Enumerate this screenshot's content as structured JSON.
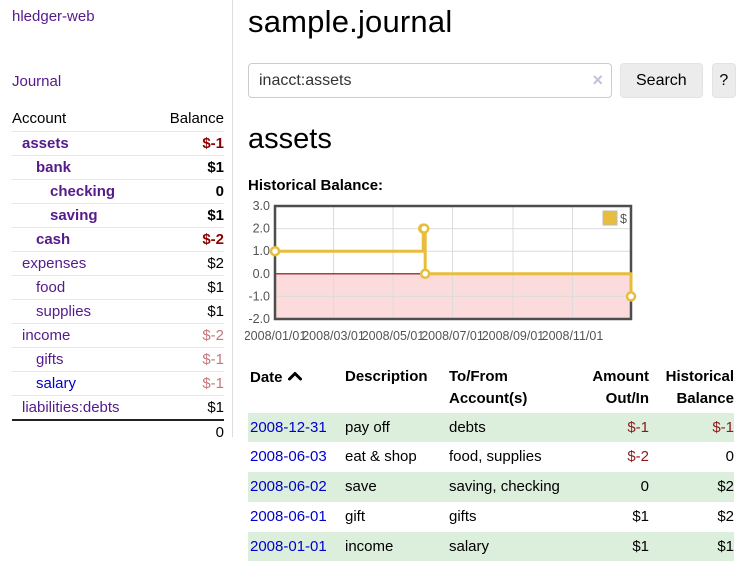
{
  "sidebar": {
    "app_title": "hledger-web",
    "nav": {
      "journal_label": "Journal"
    },
    "accounts_table": {
      "headers": {
        "account": "Account",
        "balance": "Balance"
      },
      "rows": [
        {
          "name": "assets",
          "balance": "$-1",
          "indent": 1,
          "bold": true,
          "balance_style": "neg-strong"
        },
        {
          "name": "bank",
          "balance": "$1",
          "indent": 2,
          "bold": true,
          "balance_style": "pos"
        },
        {
          "name": "checking",
          "balance": "0",
          "indent": 3,
          "bold": true,
          "balance_style": "pos"
        },
        {
          "name": "saving",
          "balance": "$1",
          "indent": 3,
          "bold": true,
          "balance_style": "pos"
        },
        {
          "name": "cash",
          "balance": "$-2",
          "indent": 2,
          "bold": true,
          "balance_style": "neg-strong"
        },
        {
          "name": "expenses",
          "balance": "$2",
          "indent": 1,
          "bold": false,
          "balance_style": "pos"
        },
        {
          "name": "food",
          "balance": "$1",
          "indent": 2,
          "bold": false,
          "balance_style": "pos"
        },
        {
          "name": "supplies",
          "balance": "$1",
          "indent": 2,
          "bold": false,
          "balance_style": "pos"
        },
        {
          "name": "income",
          "balance": "$-2",
          "indent": 1,
          "bold": false,
          "balance_style": "neg-soft"
        },
        {
          "name": "gifts",
          "balance": "$-1",
          "indent": 2,
          "bold": false,
          "balance_style": "neg-soft"
        },
        {
          "name": "salary",
          "balance": "$-1",
          "indent": 2,
          "bold": false,
          "balance_style": "neg-soft",
          "link_color": "blue"
        },
        {
          "name": "liabilities:debts",
          "balance": "$1",
          "indent": 1,
          "bold": false,
          "balance_style": "pos"
        }
      ],
      "total": "0"
    }
  },
  "main": {
    "title": "sample.journal",
    "search": {
      "value": "inacct:assets",
      "clear_icon": "×",
      "search_button": "Search",
      "help_button": "?"
    },
    "account_heading": "assets",
    "chart_label": "Historical Balance:"
  },
  "chart_data": {
    "type": "line",
    "title": "Historical Balance",
    "step": true,
    "xlim": [
      "2008-01-01",
      "2008-12-31"
    ],
    "ylim": [
      -2.0,
      3.0
    ],
    "yticks": [
      3.0,
      2.0,
      1.0,
      0.0,
      -1.0,
      -2.0
    ],
    "xticks": [
      {
        "pos": "2008-01-01",
        "label": "2008/01/01"
      },
      {
        "pos": "2008-03-01",
        "label": "2008/03/01"
      },
      {
        "pos": "2008-05-01",
        "label": "2008/05/01"
      },
      {
        "pos": "2008-07-01",
        "label": "2008/07/01"
      },
      {
        "pos": "2008-09-01",
        "label": "2008/09/01"
      },
      {
        "pos": "2008-11-01",
        "label": "2008/11/01"
      }
    ],
    "series": [
      {
        "name": "$",
        "color": "#e8bd3d",
        "points": [
          [
            "2008-01-01",
            1.0
          ],
          [
            "2008-06-01",
            2.0
          ],
          [
            "2008-06-02",
            2.0
          ],
          [
            "2008-06-03",
            0.0
          ],
          [
            "2008-12-31",
            -1.0
          ]
        ]
      }
    ],
    "legend": {
      "position": "top-right",
      "label": "$"
    },
    "grid": true,
    "zero_line_color": "#8b0000",
    "negative_region_color": "#fbdbdb",
    "border_color": "#4d4d4d",
    "grid_color": "#dcdcdc"
  },
  "transactions_table": {
    "headers": {
      "date": "Date",
      "description": "Description",
      "tofrom": "To/From Account(s)",
      "amount": "Amount Out/In",
      "balance": "Historical Balance"
    },
    "rows": [
      {
        "date": "2008-12-31",
        "description": "pay off",
        "accounts": "debts",
        "amount": "$-1",
        "balance": "$-1",
        "shaded": true
      },
      {
        "date": "2008-06-03",
        "description": "eat & shop",
        "accounts": "food, supplies",
        "amount": "$-2",
        "balance": "0",
        "shaded": false
      },
      {
        "date": "2008-06-02",
        "description": "save",
        "accounts": "saving, checking",
        "amount": "0",
        "balance": "$2",
        "shaded": true
      },
      {
        "date": "2008-06-01",
        "description": "gift",
        "accounts": "gifts",
        "amount": "$1",
        "balance": "$2",
        "shaded": false
      },
      {
        "date": "2008-01-01",
        "description": "income",
        "accounts": "salary",
        "amount": "$1",
        "balance": "$1",
        "shaded": true
      }
    ]
  }
}
